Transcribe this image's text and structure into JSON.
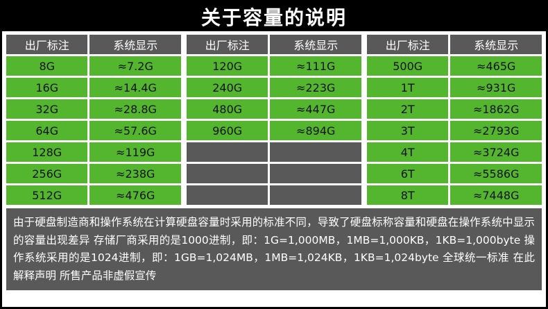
{
  "title": "关于容量的说明",
  "colors": {
    "accent_green": "#53b62e",
    "header_gray": "#595959",
    "title_black": "#000000"
  },
  "table": {
    "groups": [
      {
        "header": {
          "factory": "出厂标注",
          "system": "系统显示"
        },
        "rows": [
          {
            "factory": "8G",
            "system": "≈7.2G"
          },
          {
            "factory": "16G",
            "system": "≈14.4G"
          },
          {
            "factory": "32G",
            "system": "≈28.8G"
          },
          {
            "factory": "64G",
            "system": "≈57.6G"
          },
          {
            "factory": "128G",
            "system": "≈119G"
          },
          {
            "factory": "256G",
            "system": "≈238G"
          },
          {
            "factory": "512G",
            "system": "≈476G"
          }
        ]
      },
      {
        "header": {
          "factory": "出厂标注",
          "system": "系统显示"
        },
        "rows": [
          {
            "factory": "120G",
            "system": "≈111G"
          },
          {
            "factory": "240G",
            "system": "≈223G"
          },
          {
            "factory": "480G",
            "system": "≈447G"
          },
          {
            "factory": "960G",
            "system": "≈894G"
          },
          {
            "factory": "",
            "system": ""
          },
          {
            "factory": "",
            "system": ""
          },
          {
            "factory": "",
            "system": ""
          }
        ]
      },
      {
        "header": {
          "factory": "出厂标注",
          "system": "系统显示"
        },
        "rows": [
          {
            "factory": "500G",
            "system": "≈465G"
          },
          {
            "factory": "1T",
            "system": "≈931G"
          },
          {
            "factory": "2T",
            "system": "≈1862G"
          },
          {
            "factory": "3T",
            "system": "≈2793G"
          },
          {
            "factory": "4T",
            "system": "≈3724G"
          },
          {
            "factory": "6T",
            "system": "≈5586G"
          },
          {
            "factory": "8T",
            "system": "≈7448G"
          }
        ]
      }
    ]
  },
  "footnote": "由于硬盘制造商和操作系统在计算硬盘容量时采用的标准不同，导致了硬盘标称容量和硬盘在操作系统中显示的容量出现差异 存储厂商采用的是1000进制，即：1G=1,000MB，1MB=1,000KB，1KB=1,000byte 操作系统采用的是1024进制，即：1GB=1,024MB，1MB=1,024KB，1KB=1,024byte 全球统一标准 在此解释声明 所售产品非虚假宣传"
}
